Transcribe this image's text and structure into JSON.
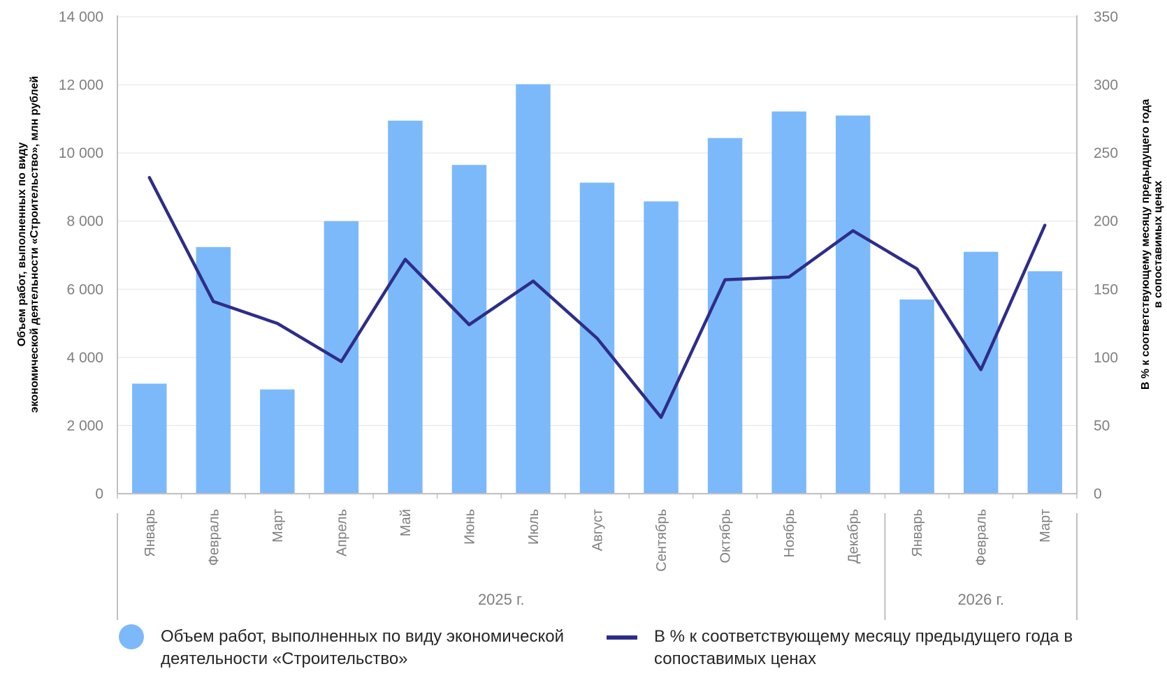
{
  "chart_data": {
    "type": "bar",
    "categories": [
      "Январь",
      "Февраль",
      "Март",
      "Апрель",
      "Май",
      "Июнь",
      "Июль",
      "Август",
      "Сентябрь",
      "Октябрь",
      "Ноябрь",
      "Декабрь",
      "Январь",
      "Февраль",
      "Март"
    ],
    "groups": [
      {
        "label": "2025 г.",
        "count": 12
      },
      {
        "label": "2026 г.",
        "count": 3
      }
    ],
    "series": [
      {
        "name": "Объем работ, выполненных по виду экономической деятельности «Строительство»",
        "type": "bar",
        "axis": "left",
        "color": "#7cb9fb",
        "values": [
          3230,
          7240,
          3060,
          8000,
          10950,
          9650,
          12020,
          9130,
          8580,
          10440,
          11220,
          11100,
          5700,
          7100,
          6530
        ]
      },
      {
        "name": "В % к соответствующему месяцу предыдущего года в сопоставимых ценах",
        "type": "line",
        "axis": "right",
        "color": "#2e2d8a",
        "values": [
          232,
          141,
          125,
          97,
          172,
          124,
          156,
          114,
          56,
          157,
          159,
          193,
          165,
          91,
          197
        ]
      }
    ],
    "y_left": {
      "label": "Объем работ, выполненных по виду экономической деятельности «Строительство», млн рублей",
      "min": 0,
      "max": 14000,
      "ticks": [
        0,
        2000,
        4000,
        6000,
        8000,
        10000,
        12000,
        14000
      ],
      "tick_labels": [
        "0",
        "2 000",
        "4 000",
        "6 000",
        "8 000",
        "10 000",
        "12 000",
        "14 000"
      ]
    },
    "y_right": {
      "label": "В % к соответствующему месяцу предыдущего года в сопоставимых ценах",
      "min": 0,
      "max": 350,
      "ticks": [
        0,
        50,
        100,
        150,
        200,
        250,
        300,
        350
      ],
      "tick_labels": [
        "0",
        "50",
        "100",
        "150",
        "200",
        "250",
        "300",
        "350"
      ]
    },
    "grid": true,
    "legend_position": "bottom"
  },
  "legend": {
    "bars_label": "Объем работ, выполненных по виду экономической деятельности «Строительство»",
    "line_label": "В % к соответствующему месяцу предыдущего года в сопоставимых ценах"
  }
}
